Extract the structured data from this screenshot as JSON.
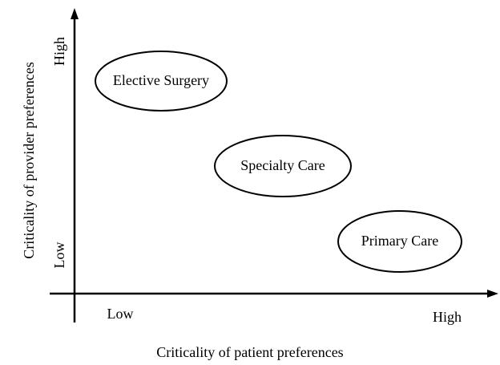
{
  "axes": {
    "x": {
      "title": "Criticality of patient preferences",
      "low": "Low",
      "high": "High"
    },
    "y": {
      "title": "Criticality of provider preferences",
      "low": "Low",
      "high": "High"
    }
  },
  "nodes": [
    {
      "label": "Elective Surgery"
    },
    {
      "label": "Specialty Care"
    },
    {
      "label": "Primary Care"
    }
  ]
}
